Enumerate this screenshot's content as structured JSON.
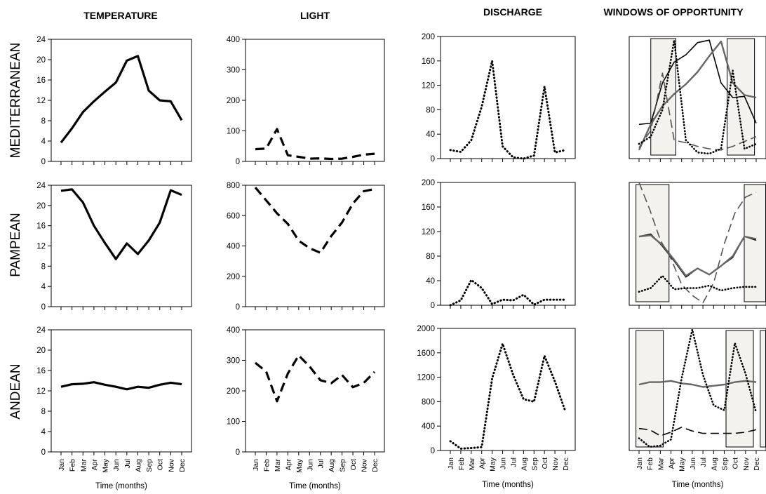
{
  "column_titles": [
    "TEMPERATURE",
    "LIGHT",
    "DISCHARGE",
    "WINDOWS OF OPPORTUNITY"
  ],
  "row_titles": [
    "MEDITERRANEAN",
    "PAMPEAN",
    "ANDEAN"
  ],
  "months": [
    "Jan",
    "Feb",
    "Mar",
    "Apr",
    "May",
    "Jun",
    "Jul",
    "Aug",
    "Sep",
    "Oct",
    "Nov",
    "Dec"
  ],
  "xlabel": "Time (months)",
  "chart_data": [
    {
      "type": "line",
      "id": "temp-med",
      "row": 0,
      "col": 0,
      "ylim": [
        0,
        24
      ],
      "yticks": [
        0,
        4,
        8,
        12,
        16,
        20,
        24
      ],
      "series": [
        {
          "style": "solid",
          "color": "#000000",
          "values": [
            3.7,
            6.5,
            9.7,
            11.8,
            13.7,
            15.5,
            19.8,
            20.7,
            13.9,
            12.0,
            11.8,
            8.1
          ]
        }
      ]
    },
    {
      "type": "line",
      "id": "light-med",
      "row": 0,
      "col": 1,
      "ylim": [
        0,
        400
      ],
      "yticks": [
        0,
        100,
        200,
        300,
        400
      ],
      "series": [
        {
          "style": "dashed",
          "color": "#000000",
          "values": [
            40,
            42,
            106,
            20,
            15,
            9,
            10,
            8,
            9,
            15,
            22,
            25
          ]
        }
      ]
    },
    {
      "type": "line",
      "id": "dis-med",
      "row": 0,
      "col": 2,
      "ylim": [
        0,
        200
      ],
      "yticks": [
        0,
        40,
        80,
        120,
        160,
        200
      ],
      "series": [
        {
          "style": "dotted",
          "color": "#000000",
          "values": [
            14,
            11,
            30,
            85,
            160,
            20,
            2,
            0,
            5,
            118,
            10,
            14
          ]
        }
      ]
    },
    {
      "type": "line",
      "id": "win-med",
      "row": 0,
      "col": 3,
      "ylim": [
        0,
        1
      ],
      "windows": [
        [
          1.4,
          3.6
        ],
        [
          8.1,
          10.5
        ]
      ],
      "series": [
        {
          "style": "solid",
          "color": "#000000",
          "values": [
            0.28,
            0.29,
            0.62,
            0.79,
            0.85,
            0.95,
            0.97,
            0.62,
            0.5,
            0.51,
            0.29
          ]
        },
        {
          "style": "solid-thick",
          "color": "#666666",
          "values": [
            0.07,
            0.28,
            0.43,
            0.53,
            0.61,
            0.71,
            0.84,
            0.96,
            0.62,
            0.52,
            0.5
          ]
        },
        {
          "style": "dashed",
          "color": "#555555",
          "values": [
            0.09,
            0.23,
            0.7,
            0.15,
            0.13,
            0.1,
            0.08,
            0.07,
            0.1,
            0.14,
            0.18
          ]
        },
        {
          "style": "dotted",
          "color": "#000000",
          "values": [
            0.12,
            0.18,
            0.4,
            0.97,
            0.15,
            0.05,
            0.04,
            0.08,
            0.72,
            0.08,
            0.12
          ]
        }
      ]
    },
    {
      "type": "line",
      "id": "temp-pam",
      "row": 1,
      "col": 0,
      "ylim": [
        0,
        24
      ],
      "yticks": [
        0,
        4,
        8,
        12,
        16,
        20,
        24
      ],
      "series": [
        {
          "style": "solid",
          "color": "#000000",
          "values": [
            22.9,
            23.2,
            20.6,
            16.0,
            12.6,
            9.4,
            12.5,
            10.4,
            13.1,
            16.6,
            23.0,
            22.1
          ]
        }
      ]
    },
    {
      "type": "line",
      "id": "light-pam",
      "row": 1,
      "col": 1,
      "ylim": [
        0,
        800
      ],
      "yticks": [
        0,
        200,
        400,
        600,
        800
      ],
      "series": [
        {
          "style": "dashed",
          "color": "#000000",
          "values": [
            785,
            700,
            615,
            545,
            435,
            385,
            355,
            465,
            555,
            680,
            760,
            775
          ]
        }
      ]
    },
    {
      "type": "line",
      "id": "dis-pam",
      "row": 1,
      "col": 2,
      "ylim": [
        0,
        200
      ],
      "yticks": [
        0,
        40,
        80,
        120,
        160,
        200
      ],
      "series": [
        {
          "style": "dotted",
          "color": "#000000",
          "values": [
            0,
            8,
            41,
            28,
            2,
            9,
            8,
            17,
            1,
            9,
            9,
            9
          ]
        }
      ]
    },
    {
      "type": "line",
      "id": "win-pam",
      "row": 1,
      "col": 3,
      "ylim": [
        0,
        1
      ],
      "windows": [
        [
          0.1,
          3.0
        ],
        [
          9.6,
          12.0
        ]
      ],
      "series": [
        {
          "style": "solid",
          "color": "#000000",
          "values": [
            0.56,
            0.58,
            0.48,
            0.36,
            0.23,
            0.3,
            0.25,
            0.32,
            0.39,
            0.56,
            0.53
          ]
        },
        {
          "style": "solid-thick",
          "color": "#666666",
          "values": [
            0.56,
            0.57,
            0.49,
            0.37,
            0.24,
            0.3,
            0.25,
            0.32,
            0.4,
            0.56,
            0.54
          ]
        },
        {
          "style": "dashed",
          "color": "#555555",
          "values": [
            1.0,
            0.78,
            0.53,
            0.38,
            0.17,
            0.08,
            0.02,
            0.18,
            0.5,
            0.75,
            0.88,
            0.92
          ]
        },
        {
          "style": "dotted",
          "color": "#000000",
          "values": [
            0.11,
            0.14,
            0.24,
            0.13,
            0.14,
            0.14,
            0.16,
            0.12,
            0.14,
            0.15,
            0.15
          ]
        }
      ]
    },
    {
      "type": "line",
      "id": "temp-and",
      "row": 2,
      "col": 0,
      "ylim": [
        0,
        24
      ],
      "yticks": [
        0,
        4,
        8,
        12,
        16,
        20,
        24
      ],
      "series": [
        {
          "style": "solid",
          "color": "#000000",
          "values": [
            12.8,
            13.3,
            13.4,
            13.7,
            13.2,
            12.8,
            12.3,
            12.8,
            12.6,
            13.2,
            13.6,
            13.3
          ]
        }
      ]
    },
    {
      "type": "line",
      "id": "light-and",
      "row": 2,
      "col": 1,
      "ylim": [
        0,
        400
      ],
      "yticks": [
        0,
        100,
        200,
        300,
        400
      ],
      "series": [
        {
          "style": "dashed",
          "color": "#000000",
          "values": [
            292,
            263,
            166,
            257,
            316,
            280,
            235,
            225,
            252,
            212,
            226,
            262
          ]
        }
      ]
    },
    {
      "type": "line",
      "id": "dis-and",
      "row": 2,
      "col": 2,
      "ylim": [
        0,
        2000
      ],
      "yticks": [
        0,
        400,
        800,
        1200,
        1600,
        2000
      ],
      "series": [
        {
          "style": "dotted",
          "color": "#000000",
          "values": [
            152,
            30,
            40,
            55,
            1180,
            1750,
            1240,
            840,
            800,
            1550,
            1130,
            640
          ]
        }
      ]
    },
    {
      "type": "line",
      "id": "win-and",
      "row": 2,
      "col": 3,
      "ylim": [
        0,
        1
      ],
      "windows": [
        [
          0.1,
          2.5
        ],
        [
          8.0,
          10.4
        ],
        [
          11.0,
          12.0
        ]
      ],
      "series": [
        {
          "style": "solid",
          "color": "#000000",
          "values": [
            0.54,
            0.56,
            0.56,
            0.57,
            0.55,
            0.54,
            0.52,
            0.53,
            0.54,
            0.56,
            0.57,
            0.56
          ]
        },
        {
          "style": "solid-thick",
          "color": "#666666",
          "values": [
            0.54,
            0.56,
            0.56,
            0.57,
            0.55,
            0.54,
            0.52,
            0.53,
            0.54,
            0.56,
            0.57,
            0.56
          ]
        },
        {
          "style": "dashed",
          "color": "#000000",
          "values": [
            0.18,
            0.17,
            0.12,
            0.15,
            0.19,
            0.16,
            0.14,
            0.14,
            0.14,
            0.14,
            0.15,
            0.17
          ]
        },
        {
          "style": "dotted",
          "color": "#000000",
          "values": [
            0.1,
            0.03,
            0.04,
            0.09,
            0.59,
            0.99,
            0.62,
            0.37,
            0.33,
            0.88,
            0.63,
            0.31
          ]
        }
      ]
    }
  ]
}
